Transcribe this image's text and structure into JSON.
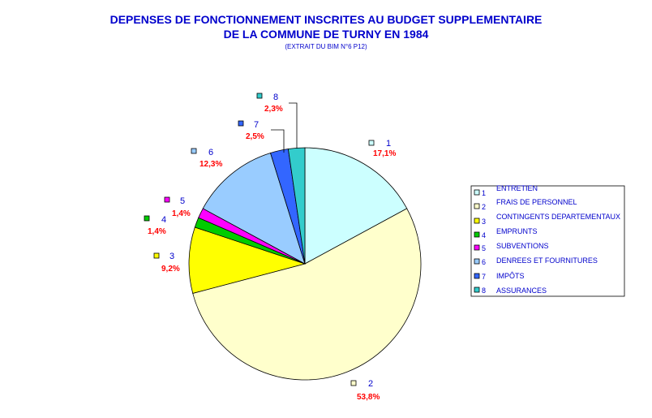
{
  "chart_data": {
    "type": "pie",
    "title": "DEPENSES DE FONCTIONNEMENT INSCRITES AU BUDGET SUPPLEMENTAIRE",
    "title_line2": "DE LA COMMUNE DE TURNY EN 1984",
    "subtitle": "(EXTRAIT DU BIM N°6 P12)",
    "legend_position": "right",
    "slices": [
      {
        "id": "1",
        "name": "ENTRETIEN",
        "value": 17.1,
        "label": "17,1%",
        "color": "#ccffff"
      },
      {
        "id": "2",
        "name": "FRAIS DE PERSONNEL",
        "value": 53.8,
        "label": "53,8%",
        "color": "#ffffcc"
      },
      {
        "id": "3",
        "name": "CONTINGENTS DEPARTEMENTAUX",
        "value": 9.2,
        "label": "9,2%",
        "color": "#ffff00"
      },
      {
        "id": "4",
        "name": "EMPRUNTS",
        "value": 1.4,
        "label": "1,4%",
        "color": "#00cc00"
      },
      {
        "id": "5",
        "name": "SUBVENTIONS",
        "value": 1.4,
        "label": "1,4%",
        "color": "#ff00ff"
      },
      {
        "id": "6",
        "name": "DENREES ET FOURNITURES",
        "value": 12.3,
        "label": "12,3%",
        "color": "#99ccff"
      },
      {
        "id": "7",
        "name": "IMPÔTS",
        "value": 2.5,
        "label": "2,5%",
        "color": "#3366ff"
      },
      {
        "id": "8",
        "name": "ASSURANCES",
        "value": 2.3,
        "label": "2,3%",
        "color": "#33cccc"
      }
    ]
  }
}
